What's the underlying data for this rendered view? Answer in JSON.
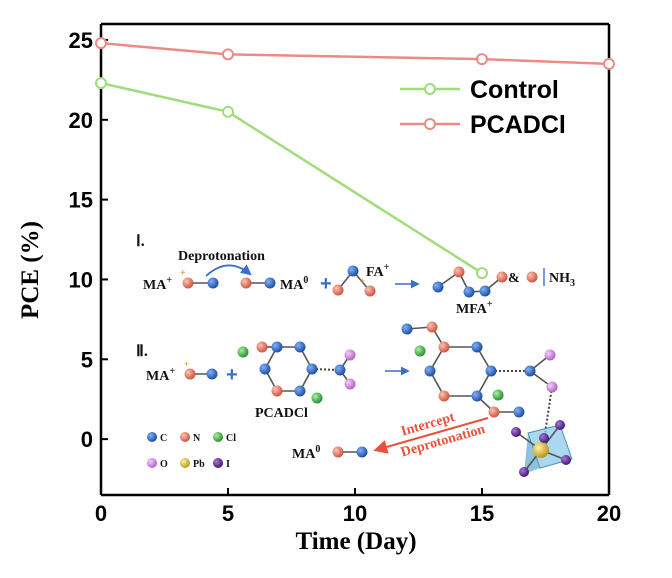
{
  "chart_data": {
    "type": "line",
    "xlabel": "Time (Day)",
    "ylabel": "PCE (%)",
    "xlim": [
      0,
      20
    ],
    "ylim": [
      -3.5,
      26
    ],
    "xticks": [
      "0",
      "5",
      "10",
      "15",
      "20"
    ],
    "yticks": [
      "0",
      "5",
      "10",
      "15",
      "20",
      "25"
    ],
    "legend_position": "top-right",
    "series": [
      {
        "name": "Control",
        "color": "#9fdc7c",
        "x": [
          0,
          5,
          15
        ],
        "y": [
          22.3,
          20.5,
          10.4
        ]
      },
      {
        "name": "PCADCl",
        "color": "#eb8c84",
        "x": [
          0,
          5,
          15,
          20
        ],
        "y": [
          24.8,
          24.1,
          23.8,
          23.5
        ]
      }
    ]
  },
  "schematic": {
    "step_one": "Ⅰ.",
    "step_two": "Ⅱ.",
    "deprotonation": "Deprotonation",
    "ma_plus": "MA",
    "ma_zero": "MA",
    "fa_plus": "FA",
    "mfa_plus": "MFA",
    "nh3": "NH",
    "ampersand": "&",
    "pcadcl": "PCADCl",
    "intercept_1": "Intercept",
    "intercept_2": "Deprotonation",
    "plus_sup": "+",
    "zero_sup": "0",
    "three_sub": "3",
    "atom_legend": [
      {
        "label": "C",
        "color": "#2c63b8"
      },
      {
        "label": "N",
        "color": "#e8735f"
      },
      {
        "label": "Cl",
        "color": "#3fae3f"
      },
      {
        "label": "O",
        "color": "#d37fe0"
      },
      {
        "label": "Pb",
        "color": "#e6c43a"
      },
      {
        "label": "I",
        "color": "#6b2fa0"
      }
    ]
  }
}
